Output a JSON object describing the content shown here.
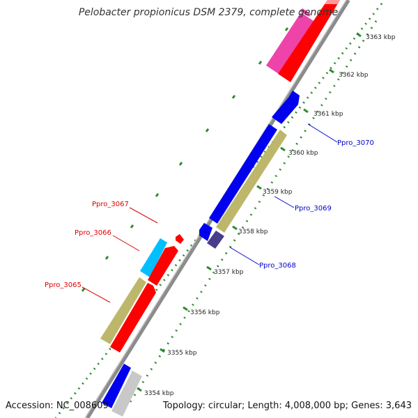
{
  "title": "Pelobacter propionicus DSM 2379, complete genome",
  "accession": "Accession: NC_008609",
  "topology": "Topology: circular; Length: 4,008,000 bp; Genes: 3,643",
  "colors": {
    "backbone": "#8c8c8c",
    "tick_green": "#2e8b2e",
    "label_blue": "#0000cc",
    "label_red": "#dd0000"
  },
  "kbp_labels": [
    "3363 kbp",
    "3362 kbp",
    "3361 kbp",
    "3360 kbp",
    "3359 kbp",
    "3358 kbp",
    "3357 kbp",
    "3356 kbp",
    "3355 kbp",
    "3354 kbp"
  ],
  "gene_labels": [
    {
      "text": "Ppro_3070",
      "color": "#0000cc"
    },
    {
      "text": "Ppro_3069",
      "color": "#0000cc"
    },
    {
      "text": "Ppro_3068",
      "color": "#0000cc"
    },
    {
      "text": "Ppro_3067",
      "color": "#dd0000"
    },
    {
      "text": "Ppro_3066",
      "color": "#dd0000"
    },
    {
      "text": "Ppro_3065",
      "color": "#dd0000"
    }
  ],
  "features": [
    {
      "name": "magenta-feature",
      "color": "#ee44aa"
    },
    {
      "name": "red-feature",
      "color": "#ff0000"
    },
    {
      "name": "blue-feature",
      "color": "#0000ee"
    },
    {
      "name": "khaki-feature",
      "color": "#bdb76b"
    },
    {
      "name": "navy-feature",
      "color": "#483d8b"
    },
    {
      "name": "cyan-feature",
      "color": "#00bfff"
    },
    {
      "name": "grey-feature",
      "color": "#c8c8c8"
    }
  ]
}
